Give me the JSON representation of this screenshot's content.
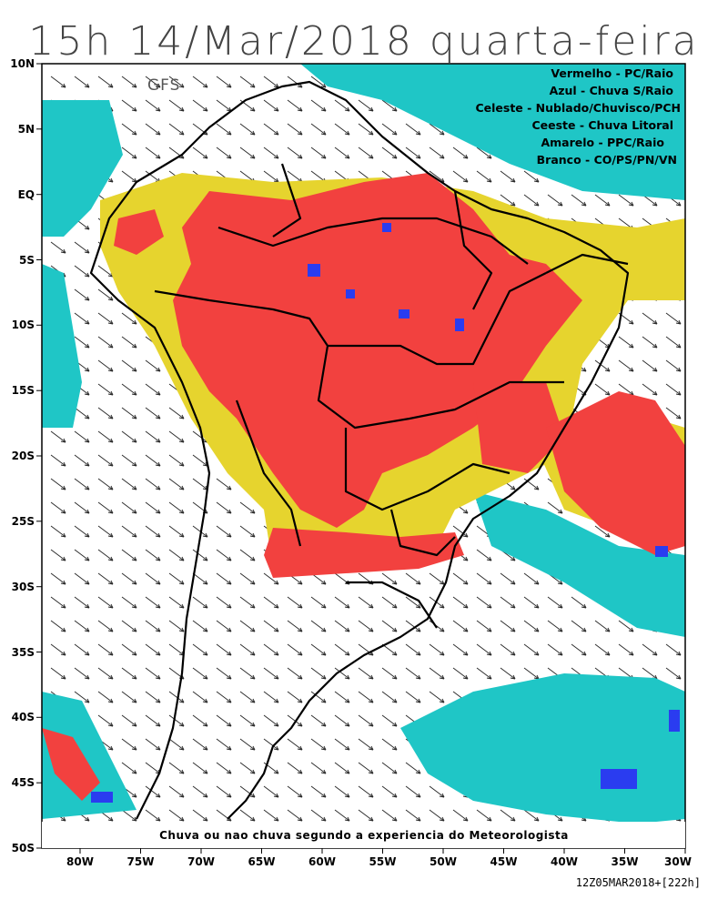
{
  "title": "15h 14/Mar/2018 quarta-feira",
  "model": "GFS",
  "legend": [
    "Vermelho - PC/Raio",
    "Azul - Chuva S/Raio",
    "Celeste - Nublado/Chuvisco/PCH",
    "Ceeste - Chuva Litoral",
    "Amarelo - PPC/Raio",
    "Branco - CO/PS/PN/VN"
  ],
  "footnote": "Chuva ou nao chuva segundo a experiencia do Meteorologista",
  "run_stamp": "12Z05MAR2018+[222h]",
  "axes": {
    "lat_labels": [
      "10N",
      "5N",
      "EQ",
      "5S",
      "10S",
      "15S",
      "20S",
      "25S",
      "30S",
      "35S",
      "40S",
      "45S",
      "50S"
    ],
    "lon_labels": [
      "80W",
      "75W",
      "70W",
      "65W",
      "60W",
      "55W",
      "50W",
      "45W",
      "40W",
      "35W",
      "30W"
    ]
  },
  "colors": {
    "red": "#f2413f",
    "blue": "#2a3cf0",
    "cyan": "#1fc6c6",
    "yellow": "#e6d42e",
    "white": "#ffffff",
    "borders": "#000000"
  },
  "icons": [
    "wind-vector-arrow"
  ]
}
